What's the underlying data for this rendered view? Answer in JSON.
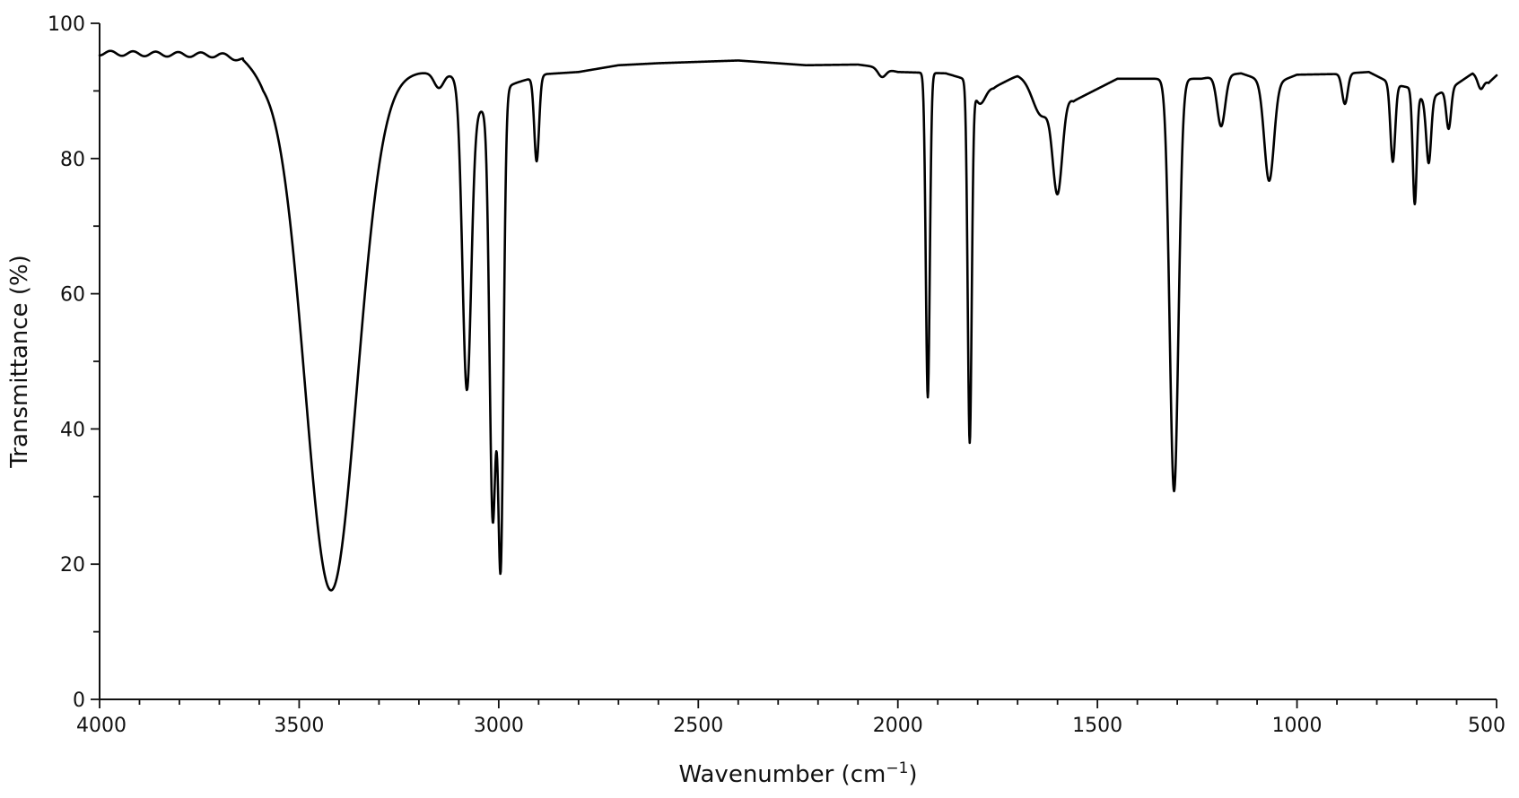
{
  "chart_data": {
    "type": "line",
    "title": "",
    "xlabel": "Wavenumber (cm",
    "xlabel_sup": "−1",
    "xlabel_close": ")",
    "ylabel": "Transmittance (%)",
    "xlim": [
      4000,
      500
    ],
    "ylim": [
      0,
      100
    ],
    "x_ticks": [
      {
        "value": 4000,
        "label": "4000"
      },
      {
        "value": 3500,
        "label": "3500"
      },
      {
        "value": 3000,
        "label": "3000"
      },
      {
        "value": 2500,
        "label": "2500"
      },
      {
        "value": 2000,
        "label": "2000"
      },
      {
        "value": 1500,
        "label": "1500"
      },
      {
        "value": 1000,
        "label": "1000"
      },
      {
        "value": 500,
        "label": "500"
      }
    ],
    "y_ticks": [
      {
        "value": 0,
        "label": "0"
      },
      {
        "value": 20,
        "label": "20"
      },
      {
        "value": 40,
        "label": "40"
      },
      {
        "value": 60,
        "label": "60"
      },
      {
        "value": 80,
        "label": "80"
      },
      {
        "value": 100,
        "label": "100"
      }
    ],
    "grid": false,
    "line_color": "#000000",
    "baseline_points": [
      [
        4000,
        95.6
      ],
      [
        3700,
        95.3
      ],
      [
        3640,
        94.8
      ],
      [
        3590,
        92.5
      ],
      [
        3200,
        92.8
      ],
      [
        3130,
        92.6
      ],
      [
        3000,
        90.5
      ],
      [
        2880,
        92.5
      ],
      [
        2800,
        92.8
      ],
      [
        2700,
        93.8
      ],
      [
        2600,
        94.1
      ],
      [
        2400,
        94.5
      ],
      [
        2230,
        93.8
      ],
      [
        2100,
        93.9
      ],
      [
        2050,
        93.5
      ],
      [
        2000,
        92.8
      ],
      [
        1880,
        92.6
      ],
      [
        1760,
        90.5
      ],
      [
        1700,
        92.3
      ],
      [
        1620,
        91.0
      ],
      [
        1560,
        88.5
      ],
      [
        1450,
        91.8
      ],
      [
        1240,
        91.8
      ],
      [
        1200,
        92.2
      ],
      [
        1140,
        92.6
      ],
      [
        1060,
        91.0
      ],
      [
        1000,
        92.4
      ],
      [
        900,
        92.5
      ],
      [
        820,
        92.8
      ],
      [
        760,
        91.0
      ],
      [
        720,
        90.5
      ],
      [
        680,
        88.5
      ],
      [
        600,
        91.0
      ],
      [
        560,
        92.6
      ],
      [
        520,
        91.2
      ],
      [
        500,
        92.3
      ]
    ],
    "peaks": [
      {
        "x": 3420,
        "depth": 76.5,
        "width": 65
      },
      {
        "x": 3150,
        "depth": 2.2,
        "width": 12
      },
      {
        "x": 3080,
        "depth": 44.0,
        "width": 11
      },
      {
        "x": 3015,
        "depth": 61.0,
        "width": 8
      },
      {
        "x": 2995,
        "depth": 68.0,
        "width": 7
      },
      {
        "x": 3045,
        "depth": 4.0,
        "width": 30
      },
      {
        "x": 2905,
        "depth": 12.5,
        "width": 6
      },
      {
        "x": 2040,
        "depth": 1.3,
        "width": 10
      },
      {
        "x": 1925,
        "depth": 48.0,
        "width": 5
      },
      {
        "x": 1820,
        "depth": 53.0,
        "width": 5
      },
      {
        "x": 1795,
        "depth": 3.0,
        "width": 14
      },
      {
        "x": 1640,
        "depth": 5.0,
        "width": 22
      },
      {
        "x": 1600,
        "depth": 14.5,
        "width": 12
      },
      {
        "x": 1308,
        "depth": 61.0,
        "width": 11
      },
      {
        "x": 1190,
        "depth": 7.5,
        "width": 10
      },
      {
        "x": 1070,
        "depth": 14.5,
        "width": 12
      },
      {
        "x": 880,
        "depth": 4.5,
        "width": 7
      },
      {
        "x": 760,
        "depth": 11.5,
        "width": 6
      },
      {
        "x": 705,
        "depth": 16.5,
        "width": 5
      },
      {
        "x": 670,
        "depth": 9.5,
        "width": 6
      },
      {
        "x": 620,
        "depth": 6.0,
        "width": 6
      },
      {
        "x": 540,
        "depth": 1.6,
        "width": 7
      }
    ]
  }
}
